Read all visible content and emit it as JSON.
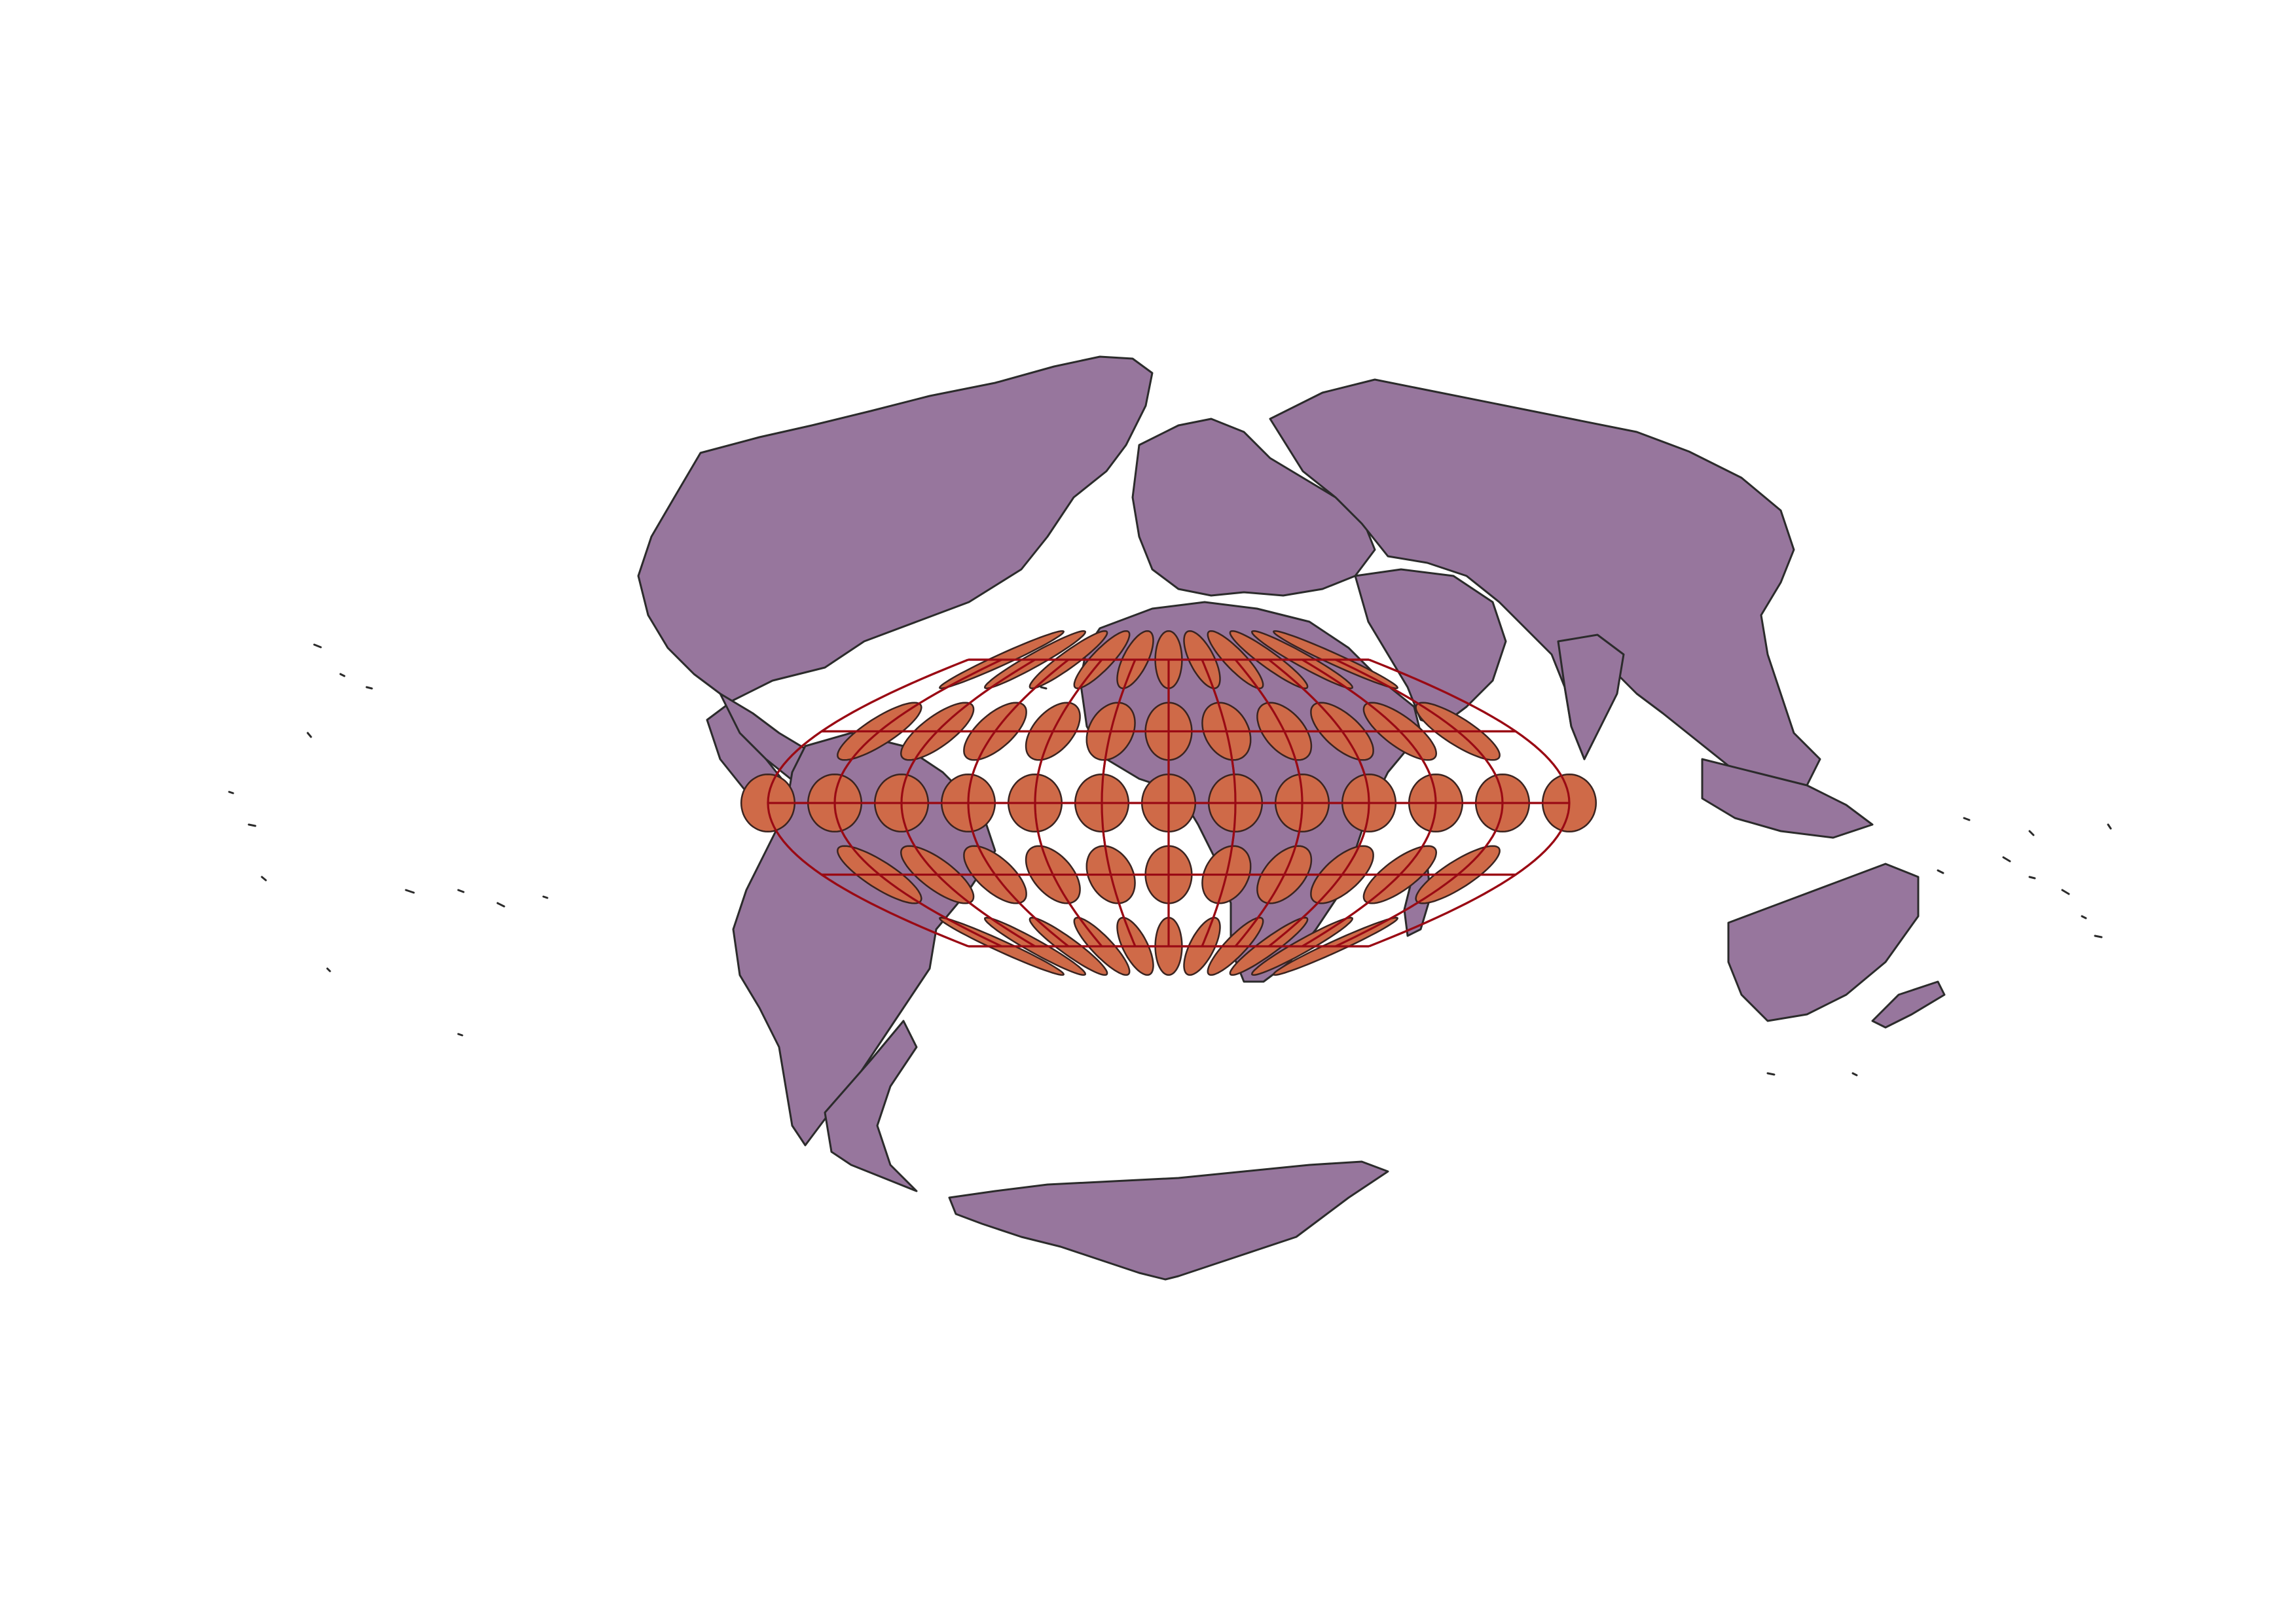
{
  "map": {
    "projection": "sinusoidal",
    "central_meridian_deg": 0,
    "graticule": {
      "meridians_deg": [
        -180,
        -150,
        -120,
        -90,
        -60,
        -30,
        0,
        30,
        60,
        90,
        120,
        150,
        180
      ],
      "parallels_deg": [
        -60,
        -30,
        0,
        30,
        60
      ]
    },
    "tissot_indicatrices": {
      "latitudes_deg": [
        -60,
        -30,
        0,
        30,
        60
      ],
      "longitudes_deg": [
        -150,
        -120,
        -90,
        -60,
        -30,
        0,
        30,
        60,
        90,
        120,
        150
      ],
      "equator_extra_longitudes_deg": [
        -180,
        180
      ]
    },
    "colors": {
      "land": "#97769d",
      "coastline": "#2b2b2b",
      "graticule": "#9a0a14",
      "indicatrix_fill": "#cf6a48",
      "indicatrix_edge": "#3a2420",
      "background": "#ffffff"
    },
    "layers": [
      "countries",
      "graticule",
      "tissot-indicatrices"
    ]
  }
}
